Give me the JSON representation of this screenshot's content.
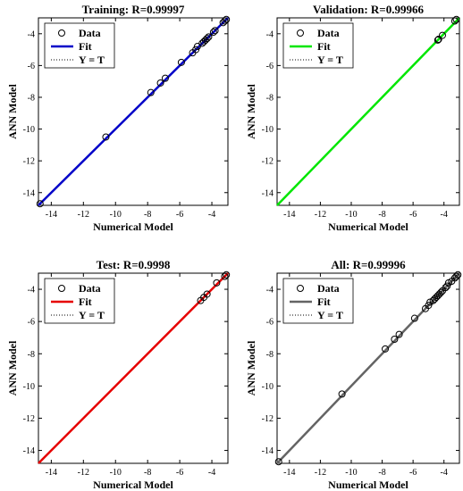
{
  "chart_data": [
    {
      "type": "scatter",
      "title": "Training: R=0.99997",
      "xlabel": "Numerical Model",
      "ylabel": "ANN Model",
      "xlim": [
        -14.8,
        -3.0
      ],
      "ylim": [
        -14.8,
        -3.0
      ],
      "xticks": [
        -14,
        -12,
        -10,
        -8,
        -6,
        -4
      ],
      "yticks": [
        -14,
        -12,
        -10,
        -8,
        -6,
        -4
      ],
      "fit_color": "#0000c8",
      "legend": [
        "Data",
        "Fit",
        "Y = T"
      ],
      "legend_position": "top-left",
      "fit": {
        "slope": 1.0,
        "intercept": 0.0
      },
      "points": [
        [
          -14.7,
          -14.7
        ],
        [
          -10.6,
          -10.5
        ],
        [
          -7.8,
          -7.7
        ],
        [
          -7.2,
          -7.1
        ],
        [
          -6.9,
          -6.8
        ],
        [
          -5.9,
          -5.8
        ],
        [
          -5.2,
          -5.2
        ],
        [
          -5.0,
          -5.0
        ],
        [
          -4.9,
          -4.8
        ],
        [
          -4.6,
          -4.6
        ],
        [
          -4.5,
          -4.5
        ],
        [
          -4.4,
          -4.4
        ],
        [
          -4.3,
          -4.3
        ],
        [
          -4.2,
          -4.2
        ],
        [
          -3.9,
          -3.9
        ],
        [
          -3.8,
          -3.8
        ],
        [
          -3.3,
          -3.3
        ],
        [
          -3.2,
          -3.2
        ],
        [
          -3.1,
          -3.1
        ]
      ]
    },
    {
      "type": "scatter",
      "title": "Validation: R=0.99966",
      "xlabel": "Numerical Model",
      "ylabel": "ANN Model",
      "xlim": [
        -14.8,
        -3.0
      ],
      "ylim": [
        -14.8,
        -3.0
      ],
      "xticks": [
        -14,
        -12,
        -10,
        -8,
        -6,
        -4
      ],
      "yticks": [
        -14,
        -12,
        -10,
        -8,
        -6,
        -4
      ],
      "fit_color": "#00e600",
      "legend": [
        "Data",
        "Fit",
        "Y = T"
      ],
      "legend_position": "top-left",
      "fit": {
        "slope": 1.0,
        "intercept": 0.0
      },
      "points": [
        [
          -4.4,
          -4.4
        ],
        [
          -4.35,
          -4.35
        ],
        [
          -4.1,
          -4.1
        ],
        [
          -3.3,
          -3.2
        ],
        [
          -3.2,
          -3.1
        ]
      ]
    },
    {
      "type": "scatter",
      "title": "Test: R=0.9998",
      "xlabel": "Numerical Model",
      "ylabel": "ANN Model",
      "xlim": [
        -14.8,
        -3.0
      ],
      "ylim": [
        -14.8,
        -3.0
      ],
      "xticks": [
        -14,
        -12,
        -10,
        -8,
        -6,
        -4
      ],
      "yticks": [
        -14,
        -12,
        -10,
        -8,
        -6,
        -4
      ],
      "fit_color": "#e60000",
      "legend": [
        "Data",
        "Fit",
        "Y = T"
      ],
      "legend_position": "top-left",
      "fit": {
        "slope": 1.0,
        "intercept": 0.0
      },
      "points": [
        [
          -4.7,
          -4.7
        ],
        [
          -4.5,
          -4.5
        ],
        [
          -4.3,
          -4.3
        ],
        [
          -3.7,
          -3.6
        ],
        [
          -3.2,
          -3.2
        ],
        [
          -3.1,
          -3.1
        ]
      ]
    },
    {
      "type": "scatter",
      "title": "All: R=0.99996",
      "xlabel": "Numerical Model",
      "ylabel": "ANN Model",
      "xlim": [
        -14.8,
        -3.0
      ],
      "ylim": [
        -14.8,
        -3.0
      ],
      "xticks": [
        -14,
        -12,
        -10,
        -8,
        -6,
        -4
      ],
      "yticks": [
        -14,
        -12,
        -10,
        -8,
        -6,
        -4
      ],
      "fit_color": "#646464",
      "legend": [
        "Data",
        "Fit",
        "Y = T"
      ],
      "legend_position": "top-left",
      "fit": {
        "slope": 1.0,
        "intercept": 0.0
      },
      "points": [
        [
          -14.7,
          -14.7
        ],
        [
          -10.6,
          -10.5
        ],
        [
          -7.8,
          -7.7
        ],
        [
          -7.2,
          -7.1
        ],
        [
          -6.9,
          -6.8
        ],
        [
          -5.9,
          -5.8
        ],
        [
          -5.2,
          -5.2
        ],
        [
          -5.0,
          -5.0
        ],
        [
          -4.9,
          -4.8
        ],
        [
          -4.7,
          -4.7
        ],
        [
          -4.6,
          -4.6
        ],
        [
          -4.5,
          -4.5
        ],
        [
          -4.4,
          -4.4
        ],
        [
          -4.3,
          -4.3
        ],
        [
          -4.2,
          -4.2
        ],
        [
          -4.1,
          -4.1
        ],
        [
          -3.9,
          -3.9
        ],
        [
          -3.8,
          -3.8
        ],
        [
          -3.7,
          -3.6
        ],
        [
          -3.5,
          -3.5
        ],
        [
          -3.3,
          -3.3
        ],
        [
          -3.2,
          -3.2
        ],
        [
          -3.1,
          -3.1
        ]
      ]
    }
  ]
}
